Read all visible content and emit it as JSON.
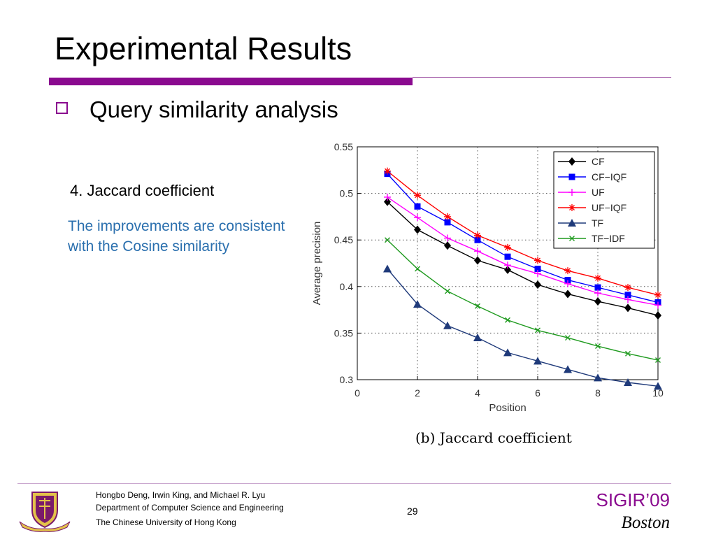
{
  "slide": {
    "title": "Experimental Results",
    "bullet": "Query similarity analysis",
    "subheading": "4. Jaccard coefficient",
    "note": "The improvements are consistent with the Cosine similarity",
    "caption": "(b)  Jaccard coefficient",
    "page_number": "29"
  },
  "footer": {
    "authors": "Hongbo Deng, Irwin King, and Michael R. Lyu",
    "department": "Department of Computer Science and Engineering",
    "university": "The Chinese University of Hong Kong",
    "conference": "SIGIR’09",
    "city": "Boston"
  },
  "colors": {
    "accent": "#8a0a8f",
    "note_text": "#2a6fae"
  },
  "chart_data": {
    "type": "line",
    "xlabel": "Position",
    "ylabel": "Average precision",
    "xlim": [
      0,
      10
    ],
    "ylim": [
      0.3,
      0.55
    ],
    "xticks": [
      0,
      2,
      4,
      6,
      8,
      10
    ],
    "yticks": [
      0.3,
      0.35,
      0.4,
      0.45,
      0.5,
      0.55
    ],
    "xtick_labels": [
      "0",
      "2",
      "4",
      "6",
      "8",
      "10"
    ],
    "ytick_labels": [
      "0.3",
      "0.35",
      "0.4",
      "0.45",
      "0.5",
      "0.55"
    ],
    "grid": true,
    "legend_position": "top-right",
    "x": [
      1,
      2,
      3,
      4,
      5,
      6,
      7,
      8,
      9,
      10
    ],
    "series": [
      {
        "name": "CF",
        "color": "#000000",
        "marker": "diamond",
        "values": [
          0.491,
          0.461,
          0.444,
          0.428,
          0.418,
          0.402,
          0.392,
          0.384,
          0.377,
          0.369
        ]
      },
      {
        "name": "CF−IQF",
        "color": "#0000ff",
        "marker": "square",
        "values": [
          0.521,
          0.486,
          0.469,
          0.45,
          0.432,
          0.419,
          0.407,
          0.399,
          0.391,
          0.383
        ]
      },
      {
        "name": "UF",
        "color": "#ff00ff",
        "marker": "plus",
        "values": [
          0.496,
          0.474,
          0.452,
          0.438,
          0.423,
          0.414,
          0.403,
          0.393,
          0.386,
          0.38
        ]
      },
      {
        "name": "UF−IQF",
        "color": "#ff0000",
        "marker": "asterisk",
        "values": [
          0.524,
          0.498,
          0.475,
          0.455,
          0.442,
          0.428,
          0.417,
          0.409,
          0.399,
          0.391
        ]
      },
      {
        "name": "TF",
        "color": "#1f3a7a",
        "marker": "triangle",
        "values": [
          0.419,
          0.381,
          0.358,
          0.345,
          0.329,
          0.32,
          0.311,
          0.302,
          0.297,
          0.293
        ]
      },
      {
        "name": "TF−IDF",
        "color": "#1e9a1e",
        "marker": "x",
        "values": [
          0.45,
          0.419,
          0.395,
          0.379,
          0.364,
          0.353,
          0.345,
          0.336,
          0.328,
          0.321
        ]
      }
    ]
  }
}
